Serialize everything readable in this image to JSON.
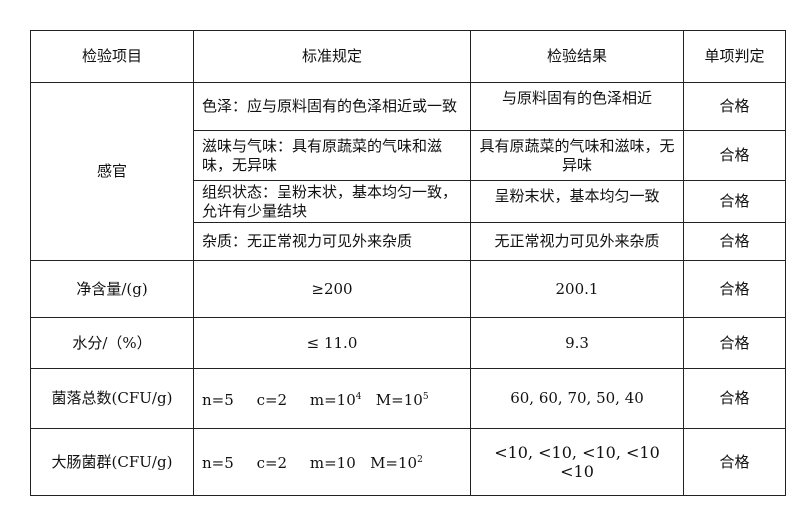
{
  "header": {
    "item": "检验项目",
    "standard": "标准规定",
    "result": "检验结果",
    "verdict": "单项判定"
  },
  "sensory": {
    "label": "感官",
    "rows": [
      {
        "standard": "色泽：应与原料固有的色泽相近或一致",
        "result": "与原料固有的色泽相近",
        "verdict": "合格"
      },
      {
        "standard": "滋味与气味：具有原蔬菜的气味和滋味，无异味",
        "result": "具有原蔬菜的气味和滋味，无异味",
        "verdict": "合格"
      },
      {
        "standard": "组织状态：呈粉末状，基本均匀一致，允许有少量结块",
        "result": "呈粉末状，基本均匀一致",
        "verdict": "合格"
      },
      {
        "standard": "杂质：无正常视力可见外来杂质",
        "result": "无正常视力可见外来杂质",
        "verdict": "合格"
      }
    ]
  },
  "net": {
    "label": "净含量/(g)",
    "standard": "≥200",
    "result": "200.1",
    "verdict": "合格"
  },
  "water": {
    "label": "水分/（%）",
    "standard": "≤ 11.0",
    "result": "9.3",
    "verdict": "合格"
  },
  "colony": {
    "label": "菌落总数(CFU/g)",
    "n": "n=5",
    "c": "c=2",
    "m": "m=10",
    "m_exp": "4",
    "M": "M=10",
    "M_exp": "5",
    "result": "60, 60, 70, 50, 40",
    "verdict": "合格"
  },
  "coliform": {
    "label": "大肠菌群(CFU/g)",
    "n": "n=5",
    "c": "c=2",
    "m": "m=10",
    "M": "M=10",
    "M_exp": "2",
    "result": "<10, <10, <10, <10 <10",
    "verdict": "合格"
  }
}
